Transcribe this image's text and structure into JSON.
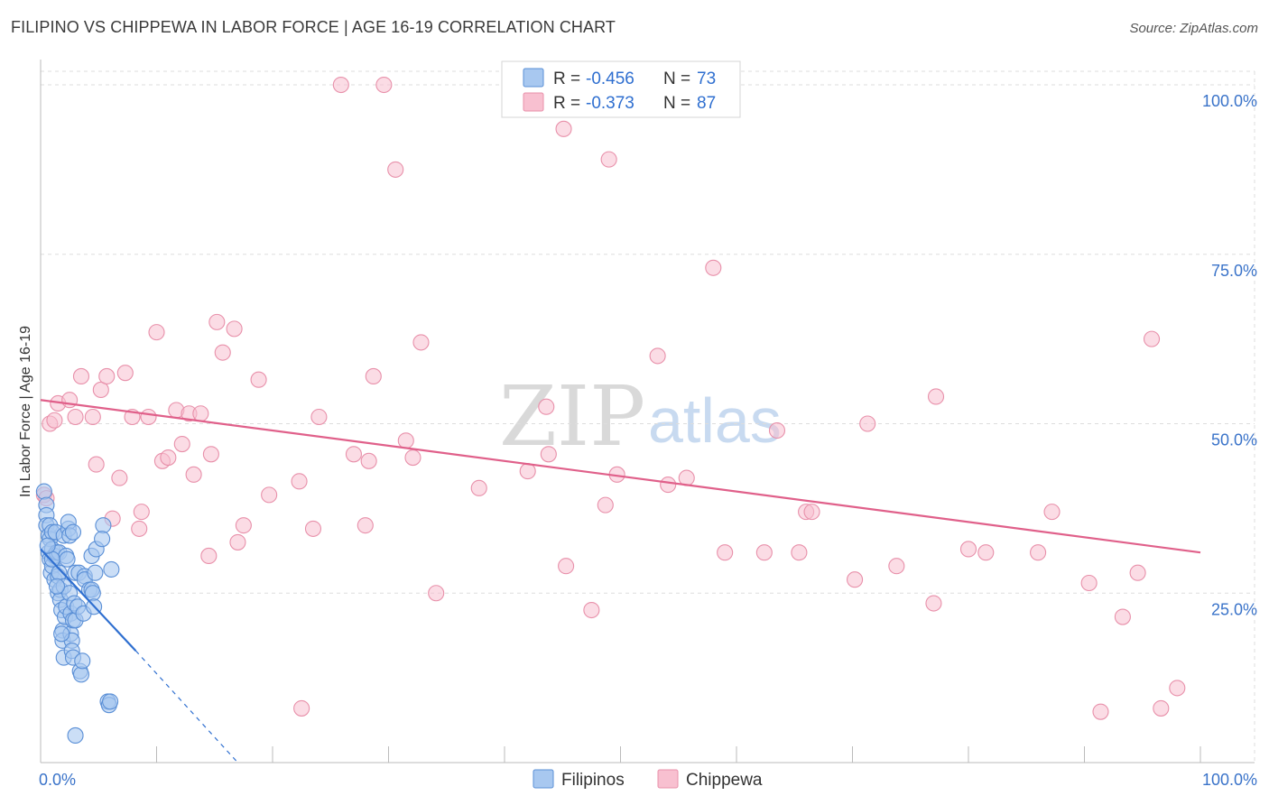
{
  "header": {
    "title": "FILIPINO VS CHIPPEWA IN LABOR FORCE | AGE 16-19 CORRELATION CHART",
    "source": "Source: ZipAtlas.com"
  },
  "watermark": {
    "zip": "ZIP",
    "atlas": "atlas"
  },
  "legend": {
    "filipinos": {
      "r_label": "R =",
      "r_value": "-0.456",
      "n_label": "N =",
      "n_value": "73"
    },
    "chippewa": {
      "r_label": "R =",
      "r_value": "-0.373",
      "n_label": "N =",
      "n_value": "87"
    }
  },
  "bottom_legend": {
    "filipinos": "Filipinos",
    "chippewa": "Chippewa"
  },
  "colors": {
    "filipinos_fill": "#a8c8f0",
    "filipinos_stroke": "#5a8fd6",
    "filipinos_line": "#2f6fd0",
    "chippewa_fill": "#f8c0d0",
    "chippewa_stroke": "#e890aa",
    "chippewa_line": "#e0608a",
    "grid": "#dddddd",
    "tick_text": "#3a73c9"
  },
  "chart_data": {
    "type": "scatter",
    "title": "FILIPINO VS CHIPPEWA IN LABOR FORCE | AGE 16-19 CORRELATION CHART",
    "xlabel": "",
    "ylabel": "In Labor Force | Age 16-19",
    "xlim": [
      0,
      100
    ],
    "ylim": [
      0,
      102
    ],
    "x_tick_labels": [
      "0.0%",
      "100.0%"
    ],
    "y_ticks": [
      25,
      50,
      75,
      100
    ],
    "y_tick_labels": [
      "25.0%",
      "50.0%",
      "75.0%",
      "100.0%"
    ],
    "series": [
      {
        "name": "Filipinos",
        "trend": {
          "x0": 0,
          "y0": 31.5,
          "x1": 8.2,
          "y1": 16.5,
          "dash_to_x": 17,
          "dash_to_y": 0
        },
        "points": [
          [
            0.3,
            40
          ],
          [
            0.5,
            38
          ],
          [
            0.5,
            36.5
          ],
          [
            0.5,
            35
          ],
          [
            0.7,
            33.5
          ],
          [
            0.7,
            31
          ],
          [
            0.8,
            35
          ],
          [
            0.8,
            33
          ],
          [
            0.8,
            30
          ],
          [
            0.9,
            28
          ],
          [
            1.0,
            34
          ],
          [
            1.0,
            31.5
          ],
          [
            1.0,
            29
          ],
          [
            1.2,
            30.5
          ],
          [
            1.2,
            27
          ],
          [
            1.3,
            34
          ],
          [
            1.4,
            31
          ],
          [
            1.5,
            27.5
          ],
          [
            1.5,
            25
          ],
          [
            1.6,
            31
          ],
          [
            1.6,
            28
          ],
          [
            1.7,
            25.5
          ],
          [
            1.7,
            24
          ],
          [
            1.8,
            22.5
          ],
          [
            1.9,
            19.5
          ],
          [
            1.9,
            18
          ],
          [
            2.0,
            15.5
          ],
          [
            2.0,
            33.5
          ],
          [
            2.0,
            26
          ],
          [
            2.1,
            21.5
          ],
          [
            2.2,
            30.5
          ],
          [
            2.2,
            23
          ],
          [
            2.4,
            34.5
          ],
          [
            2.4,
            35.5
          ],
          [
            2.5,
            33.5
          ],
          [
            2.5,
            25
          ],
          [
            2.6,
            22
          ],
          [
            2.6,
            19
          ],
          [
            2.7,
            18
          ],
          [
            2.7,
            16.5
          ],
          [
            2.8,
            15.5
          ],
          [
            2.8,
            34
          ],
          [
            2.8,
            21
          ],
          [
            2.9,
            23.5
          ],
          [
            3.0,
            28
          ],
          [
            3.0,
            21
          ],
          [
            3.0,
            4
          ],
          [
            3.2,
            23
          ],
          [
            3.3,
            28
          ],
          [
            3.4,
            13.5
          ],
          [
            3.5,
            13
          ],
          [
            3.6,
            15
          ],
          [
            3.7,
            22
          ],
          [
            3.8,
            27.5
          ],
          [
            3.8,
            27
          ],
          [
            4.2,
            25.5
          ],
          [
            4.4,
            30.5
          ],
          [
            4.4,
            25.5
          ],
          [
            4.5,
            25
          ],
          [
            4.6,
            23
          ],
          [
            4.8,
            31.5
          ],
          [
            5.4,
            35
          ],
          [
            5.3,
            33
          ],
          [
            5.8,
            9
          ],
          [
            5.9,
            8.5
          ],
          [
            6.0,
            9
          ],
          [
            6.1,
            28.5
          ],
          [
            1.4,
            26
          ],
          [
            1.0,
            30
          ],
          [
            2.3,
            30
          ],
          [
            1.8,
            19
          ],
          [
            0.6,
            32
          ],
          [
            4.7,
            28
          ]
        ]
      },
      {
        "name": "Chippewa",
        "trend": {
          "x0": 0,
          "y0": 53.5,
          "x1": 100,
          "y1": 31
        },
        "points": [
          [
            0.3,
            39.5
          ],
          [
            0.5,
            39
          ],
          [
            0.8,
            50
          ],
          [
            1.2,
            50.5
          ],
          [
            1.5,
            53
          ],
          [
            2.5,
            53.5
          ],
          [
            3.0,
            51
          ],
          [
            3.5,
            57
          ],
          [
            4.5,
            51
          ],
          [
            4.8,
            44
          ],
          [
            5.2,
            55
          ],
          [
            5.7,
            57
          ],
          [
            6.2,
            36
          ],
          [
            6.8,
            42
          ],
          [
            7.3,
            57.5
          ],
          [
            7.9,
            51
          ],
          [
            8.5,
            34.5
          ],
          [
            8.7,
            37
          ],
          [
            9.3,
            51
          ],
          [
            10.0,
            63.5
          ],
          [
            10.5,
            44.5
          ],
          [
            11.0,
            45
          ],
          [
            11.7,
            52
          ],
          [
            12.2,
            47
          ],
          [
            12.8,
            51.5
          ],
          [
            13.2,
            42.5
          ],
          [
            13.8,
            51.5
          ],
          [
            14.5,
            30.5
          ],
          [
            14.7,
            45.5
          ],
          [
            15.2,
            65
          ],
          [
            15.7,
            60.5
          ],
          [
            16.7,
            64
          ],
          [
            17.0,
            32.5
          ],
          [
            17.5,
            35
          ],
          [
            18.8,
            56.5
          ],
          [
            19.7,
            39.5
          ],
          [
            22.3,
            41.5
          ],
          [
            22.5,
            8
          ],
          [
            23.5,
            34.5
          ],
          [
            24.0,
            51
          ],
          [
            25.9,
            100
          ],
          [
            27.0,
            45.5
          ],
          [
            28.0,
            35
          ],
          [
            28.3,
            44.5
          ],
          [
            28.7,
            57
          ],
          [
            29.6,
            100
          ],
          [
            30.6,
            87.5
          ],
          [
            31.5,
            47.5
          ],
          [
            32.1,
            45
          ],
          [
            32.8,
            62
          ],
          [
            34.1,
            25
          ],
          [
            37.8,
            40.5
          ],
          [
            42.0,
            43
          ],
          [
            43.6,
            52.5
          ],
          [
            43.8,
            45.5
          ],
          [
            45.1,
            93.5
          ],
          [
            45.3,
            29
          ],
          [
            47.5,
            22.5
          ],
          [
            48.7,
            38
          ],
          [
            49.0,
            89
          ],
          [
            49.7,
            42.5
          ],
          [
            53.2,
            60
          ],
          [
            54.1,
            41
          ],
          [
            55.7,
            42
          ],
          [
            58.0,
            73
          ],
          [
            59.0,
            31
          ],
          [
            62.4,
            31
          ],
          [
            63.5,
            49
          ],
          [
            65.4,
            31
          ],
          [
            66.0,
            37
          ],
          [
            66.5,
            37
          ],
          [
            70.2,
            27
          ],
          [
            71.3,
            50
          ],
          [
            73.8,
            29
          ],
          [
            77.0,
            23.5
          ],
          [
            77.2,
            54
          ],
          [
            80.0,
            31.5
          ],
          [
            81.5,
            31
          ],
          [
            86.0,
            31
          ],
          [
            87.2,
            37
          ],
          [
            90.4,
            26.5
          ],
          [
            91.4,
            7.5
          ],
          [
            93.3,
            21.5
          ],
          [
            94.6,
            28
          ],
          [
            95.8,
            62.5
          ],
          [
            96.6,
            8
          ],
          [
            98.0,
            11
          ]
        ]
      }
    ]
  }
}
